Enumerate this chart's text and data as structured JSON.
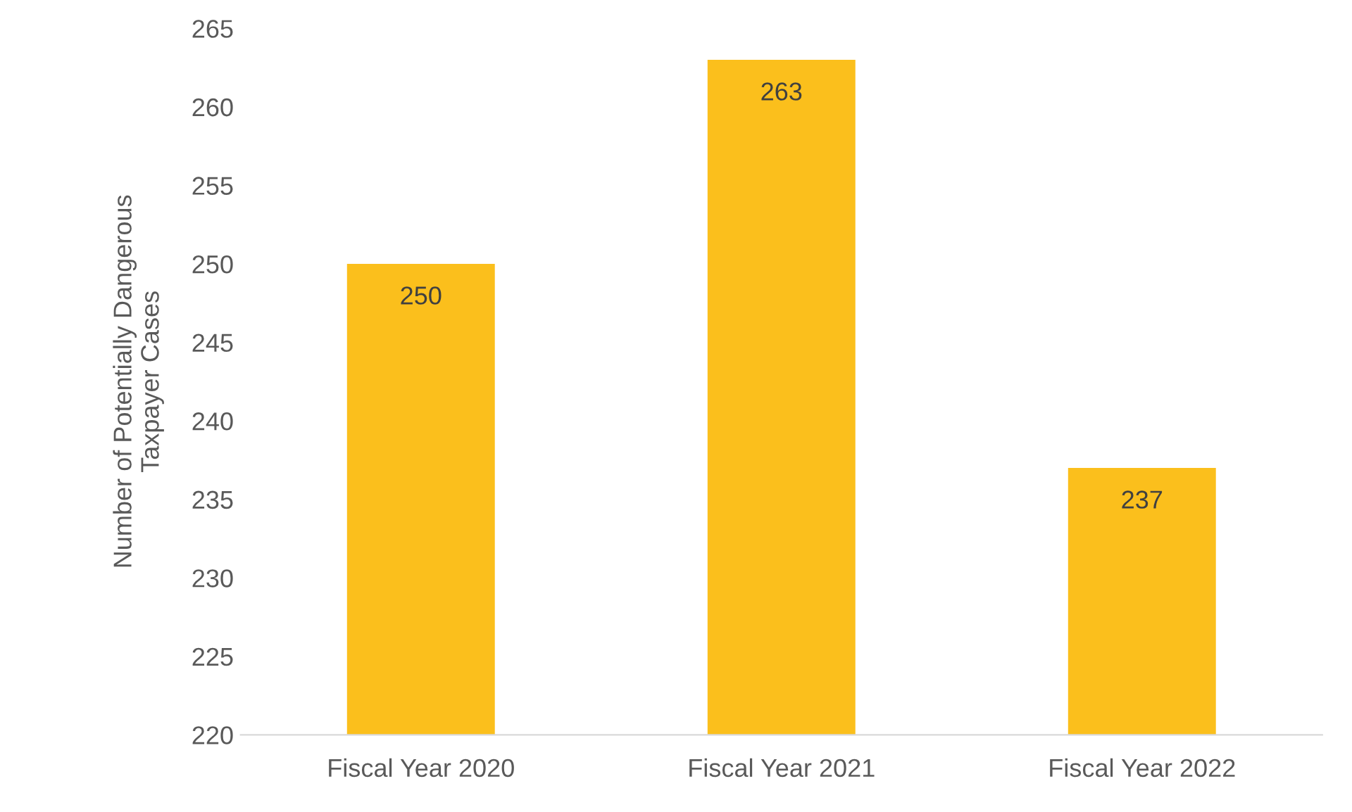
{
  "chart_data": {
    "type": "bar",
    "ylabel": "Number of Potentially Dangerous\nTaxpayer Cases",
    "categories": [
      "Fiscal Year 2020",
      "Fiscal Year 2021",
      "Fiscal Year 2022"
    ],
    "values": [
      250,
      263,
      237
    ],
    "color": "#fbbf1c",
    "ylim": [
      220,
      265
    ],
    "yticks": [
      220,
      225,
      230,
      235,
      240,
      245,
      250,
      255,
      260,
      265
    ],
    "data_labels": true,
    "grid": false,
    "legend": false
  }
}
